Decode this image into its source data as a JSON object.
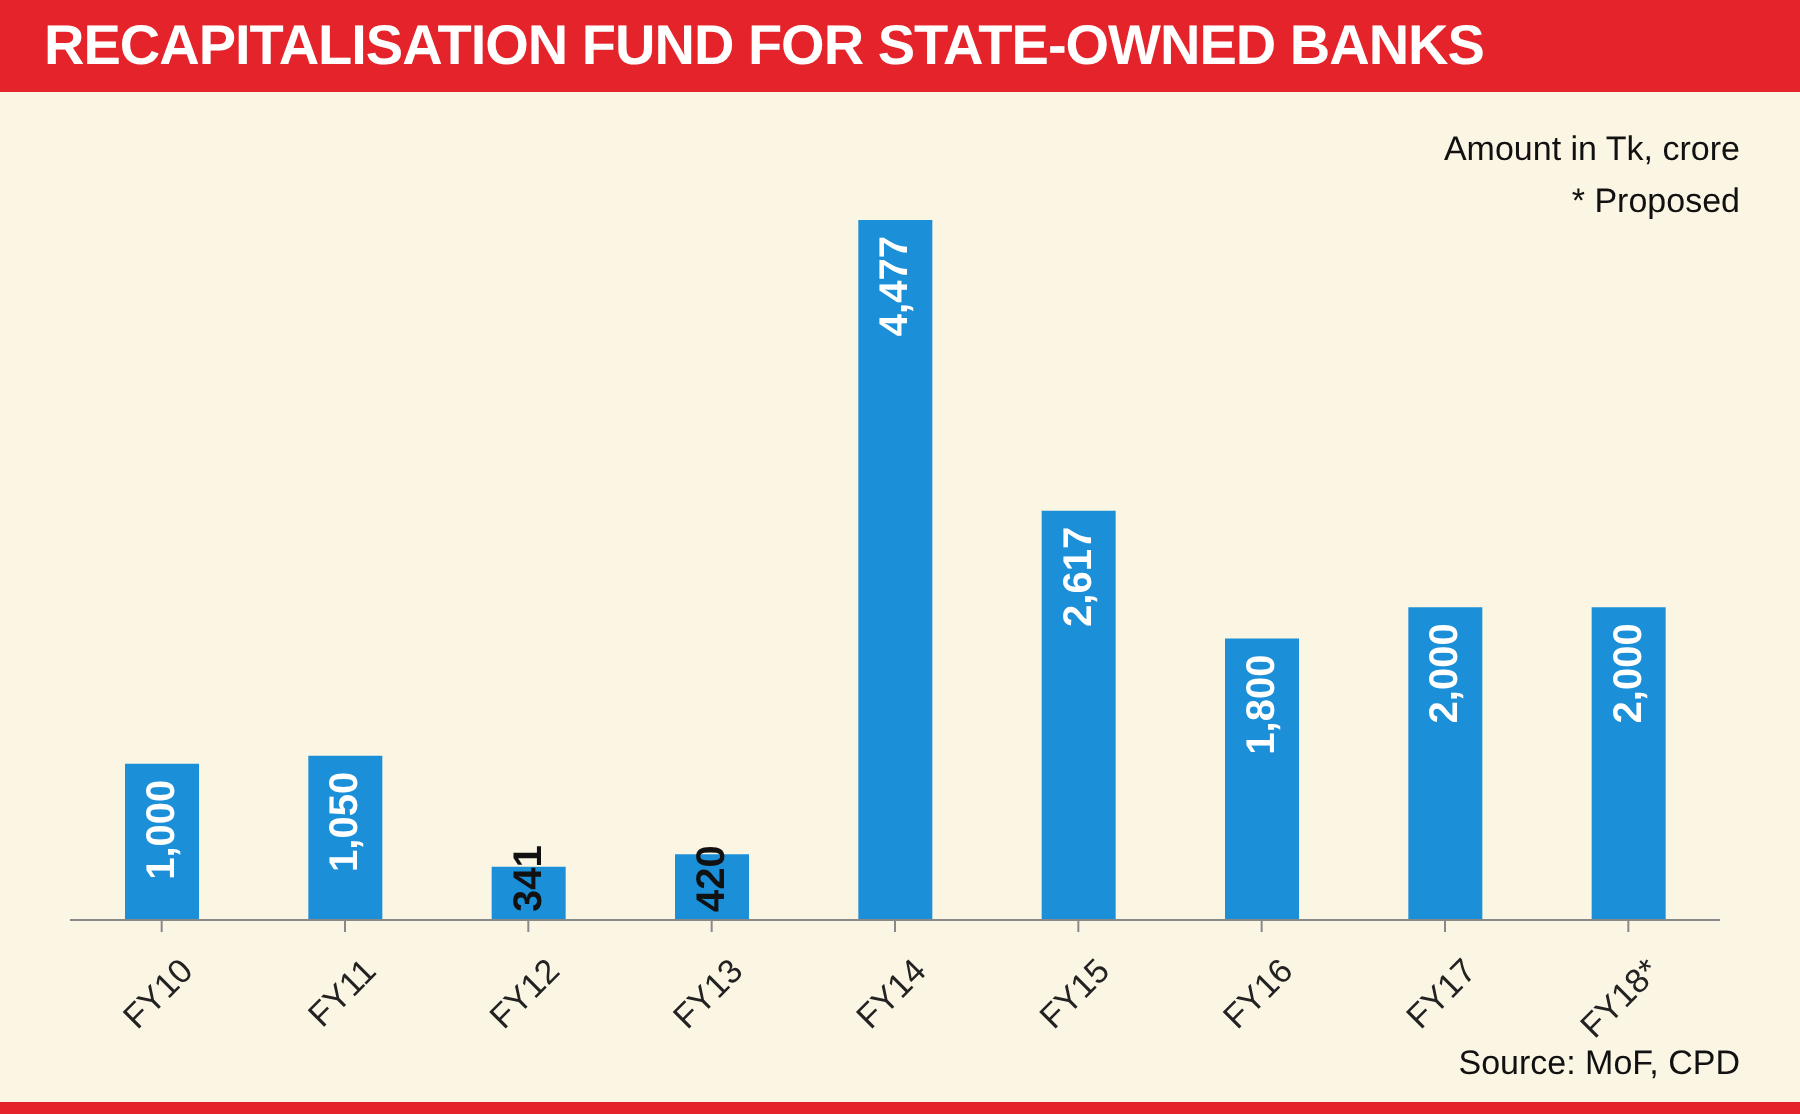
{
  "chart_data": {
    "type": "bar",
    "title": "RECAPITALISATION FUND FOR STATE-OWNED BANKS",
    "categories": [
      "FY10",
      "FY11",
      "FY12",
      "FY13",
      "FY14",
      "FY15",
      "FY16",
      "FY17",
      "FY18*"
    ],
    "values": [
      1000,
      1050,
      341,
      420,
      4477,
      2617,
      1800,
      2000,
      2000
    ],
    "value_labels": [
      "1,000",
      "1,050",
      "341",
      "420",
      "4,477",
      "2,617",
      "1,800",
      "2,000",
      "2,000"
    ],
    "color": "#1b8fd8",
    "annotations": [
      "Amount in Tk, crore",
      "* Proposed",
      "Source: MoF, CPD"
    ]
  }
}
